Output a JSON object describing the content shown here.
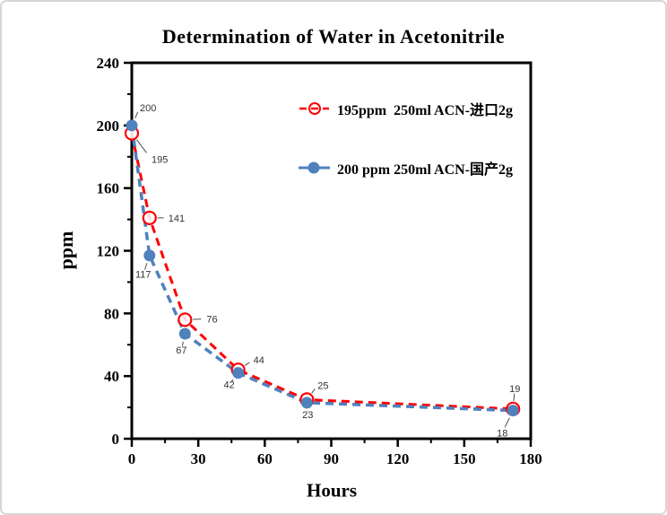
{
  "chart_data": {
    "type": "line",
    "title": "Determination of Water in Acetonitrile",
    "xlabel": "Hours",
    "ylabel": "ppm",
    "xlim": [
      0,
      180
    ],
    "ylim": [
      0,
      240
    ],
    "x_major_ticks": [
      0,
      30,
      60,
      90,
      120,
      150,
      180
    ],
    "x_minor_step": 15,
    "y_major_ticks": [
      0,
      40,
      80,
      120,
      160,
      200,
      240
    ],
    "y_minor_step": 20,
    "grid": false,
    "legend_position": "inside-top",
    "x": [
      0,
      8,
      24,
      48,
      79,
      172
    ],
    "series": [
      {
        "name": "195ppm  250ml ACN-进口2g",
        "color": "#fe0000",
        "marker": "open-circle",
        "line_style": "dashed",
        "values": [
          195,
          141,
          76,
          44,
          25,
          19
        ],
        "label_offsets": [
          [
            22,
            33,
            "start"
          ],
          [
            21,
            4,
            "start"
          ],
          [
            24,
            3,
            "start"
          ],
          [
            17,
            -7,
            "start"
          ],
          [
            12,
            -12,
            "start"
          ],
          [
            2,
            -19,
            "middle"
          ]
        ]
      },
      {
        "name": "200 ppm 250ml ACN-国产2g",
        "color": "#4f81bd",
        "marker": "filled-circle",
        "line_style": "dashed",
        "values": [
          200,
          117,
          67,
          42,
          23,
          18
        ],
        "label_offsets": [
          [
            9,
            -16,
            "start"
          ],
          [
            -7,
            25,
            "middle"
          ],
          [
            -4,
            22,
            "middle"
          ],
          [
            -10,
            17,
            "middle"
          ],
          [
            1,
            17,
            "middle"
          ],
          [
            -12,
            29,
            "middle"
          ]
        ]
      }
    ]
  }
}
